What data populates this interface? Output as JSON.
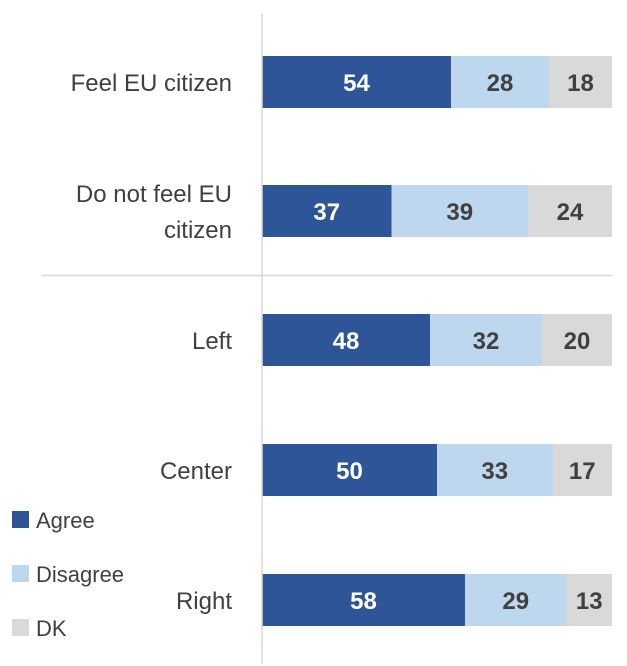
{
  "chart_data": {
    "type": "bar",
    "orientation": "horizontal",
    "stacked": true,
    "percent_stacked": true,
    "categories": [
      [
        "Feel EU citizen"
      ],
      [
        "Do not feel EU",
        "citizen"
      ],
      [
        "Left"
      ],
      [
        "Center"
      ],
      [
        "Right"
      ]
    ],
    "series": [
      {
        "name": "Agree",
        "color": "#2e5597",
        "label_color": "#ffffff",
        "values": [
          54,
          37,
          48,
          50,
          58
        ]
      },
      {
        "name": "Disagree",
        "color": "#bdd7ee",
        "label_color": "#404040",
        "values": [
          28,
          39,
          32,
          33,
          29
        ]
      },
      {
        "name": "DK",
        "color": "#d9d9d9",
        "label_color": "#404040",
        "values": [
          18,
          24,
          20,
          17,
          13
        ]
      }
    ],
    "xlim": [
      0,
      100
    ],
    "grid": false,
    "legend_position": "bottom-left",
    "group_separator_after_category": 1
  }
}
